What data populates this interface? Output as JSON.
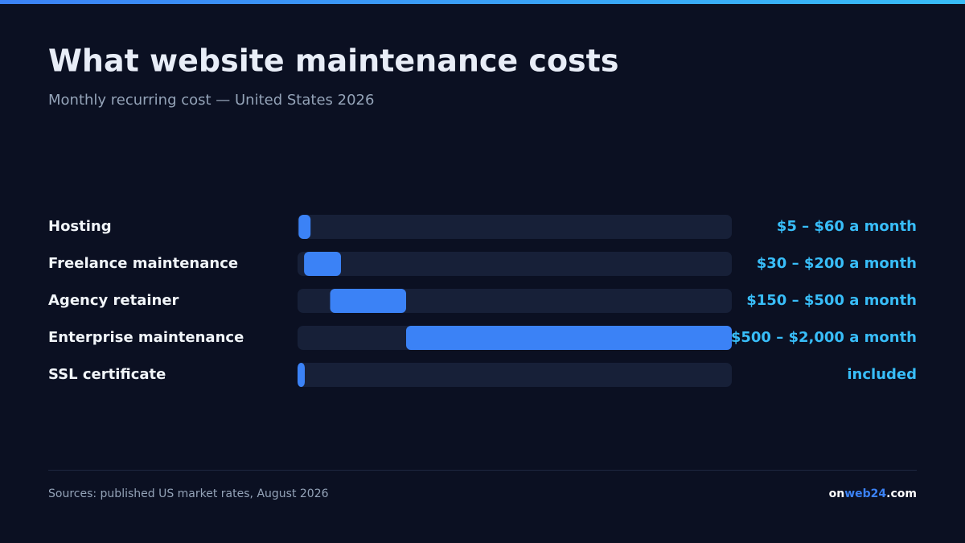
{
  "chart_data": {
    "type": "range-bar",
    "title": "What website maintenance costs",
    "subtitle": "Monthly recurring cost — United States 2026",
    "categories": [
      "Hosting",
      "Freelance maintenance",
      "Agency retainer",
      "Enterprise maintenance",
      "SSL certificate"
    ],
    "values": [
      [
        5,
        60
      ],
      [
        30,
        200
      ],
      [
        150,
        500
      ],
      [
        500,
        2000
      ],
      [
        0,
        0
      ]
    ],
    "value_labels": [
      "$5 – $60 a month",
      "$30 – $200 a month",
      "$150 – $500 a month",
      "$500 – $2,000 a month",
      "included"
    ],
    "color": "#3b82f6",
    "xlim": [
      0,
      2000
    ],
    "source": "Sources: published US market rates, August 2026",
    "brand": [
      "on",
      "web24",
      ".com"
    ]
  }
}
